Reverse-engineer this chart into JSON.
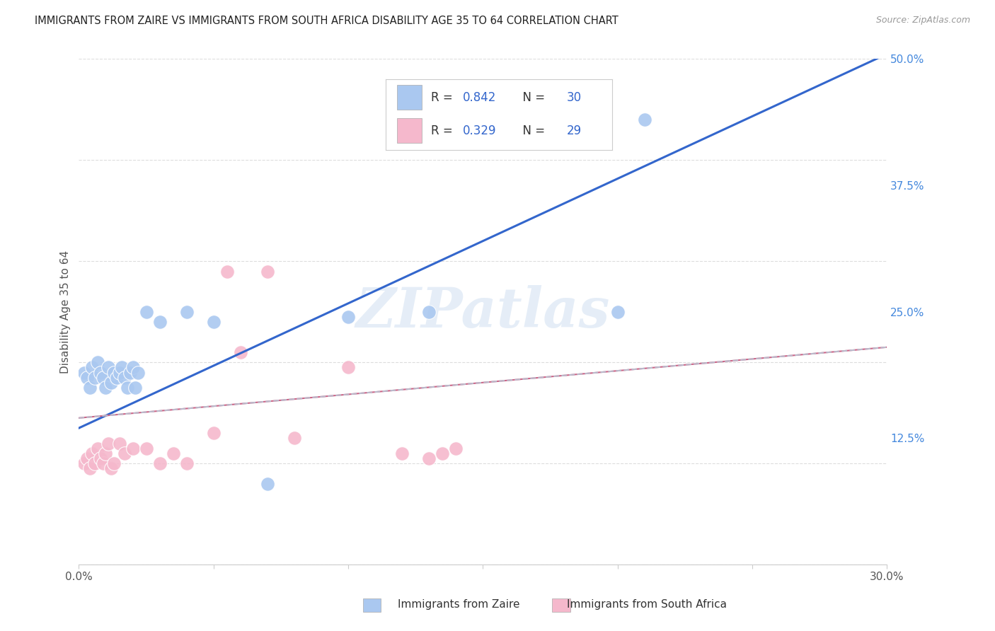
{
  "title": "IMMIGRANTS FROM ZAIRE VS IMMIGRANTS FROM SOUTH AFRICA DISABILITY AGE 35 TO 64 CORRELATION CHART",
  "source": "Source: ZipAtlas.com",
  "ylabel": "Disability Age 35 to 64",
  "xlim": [
    0.0,
    0.3
  ],
  "ylim": [
    0.0,
    0.5
  ],
  "xticks": [
    0.0,
    0.05,
    0.1,
    0.15,
    0.2,
    0.25,
    0.3
  ],
  "xticklabels": [
    "0.0%",
    "",
    "",
    "",
    "",
    "",
    "30.0%"
  ],
  "yticks": [
    0.0,
    0.125,
    0.25,
    0.375,
    0.5
  ],
  "yticklabels": [
    "",
    "12.5%",
    "25.0%",
    "37.5%",
    "50.0%"
  ],
  "legend_r1": "0.842",
  "legend_n1": "30",
  "legend_r2": "0.329",
  "legend_n2": "29",
  "legend_label1": "Immigrants from Zaire",
  "legend_label2": "Immigrants from South Africa",
  "watermark": "ZIPatlas",
  "blue_scatter_color": "#aac8f0",
  "blue_line_color": "#3366cc",
  "pink_scatter_color": "#f5b8cc",
  "pink_line_color": "#cc6688",
  "pink_dash_color": "#bbbbcc",
  "title_color": "#222222",
  "axis_label_color": "#555555",
  "tick_color_right": "#4488dd",
  "grid_color": "#dddddd",
  "background_color": "#ffffff",
  "zaire_x": [
    0.002,
    0.003,
    0.004,
    0.005,
    0.006,
    0.007,
    0.008,
    0.009,
    0.01,
    0.011,
    0.012,
    0.013,
    0.014,
    0.015,
    0.016,
    0.017,
    0.018,
    0.019,
    0.02,
    0.021,
    0.022,
    0.025,
    0.03,
    0.04,
    0.05,
    0.07,
    0.1,
    0.13,
    0.2,
    0.21
  ],
  "zaire_y": [
    0.19,
    0.185,
    0.175,
    0.195,
    0.185,
    0.2,
    0.19,
    0.185,
    0.175,
    0.195,
    0.18,
    0.19,
    0.185,
    0.19,
    0.195,
    0.185,
    0.175,
    0.19,
    0.195,
    0.175,
    0.19,
    0.25,
    0.24,
    0.25,
    0.24,
    0.08,
    0.245,
    0.25,
    0.25,
    0.44
  ],
  "sa_x": [
    0.002,
    0.003,
    0.004,
    0.005,
    0.006,
    0.007,
    0.008,
    0.009,
    0.01,
    0.011,
    0.012,
    0.013,
    0.015,
    0.017,
    0.02,
    0.025,
    0.03,
    0.035,
    0.04,
    0.05,
    0.055,
    0.06,
    0.07,
    0.08,
    0.1,
    0.12,
    0.13,
    0.135,
    0.14
  ],
  "sa_y": [
    0.1,
    0.105,
    0.095,
    0.11,
    0.1,
    0.115,
    0.105,
    0.1,
    0.11,
    0.12,
    0.095,
    0.1,
    0.12,
    0.11,
    0.115,
    0.115,
    0.1,
    0.11,
    0.1,
    0.13,
    0.29,
    0.21,
    0.29,
    0.125,
    0.195,
    0.11,
    0.105,
    0.11,
    0.115
  ],
  "blue_trend_x0": 0.0,
  "blue_trend_y0": 0.135,
  "blue_trend_x1": 0.3,
  "blue_trend_y1": 0.505,
  "pink_trend_x0": 0.0,
  "pink_trend_y0": 0.145,
  "pink_trend_x1": 0.3,
  "pink_trend_y1": 0.215
}
